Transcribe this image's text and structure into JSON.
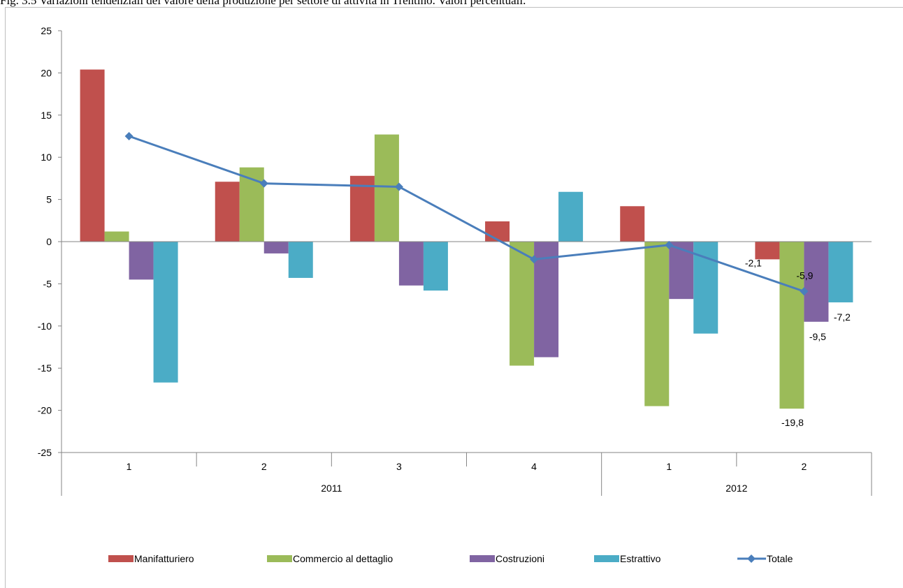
{
  "title": "Fig. 3.5 Variazioni tendenziali del valore della produzione per settore di attività in Trentino. Valori percentuali.",
  "chart_data": {
    "type": "bar",
    "ylim": [
      -25,
      25
    ],
    "yticks": [
      25,
      20,
      15,
      10,
      5,
      0,
      -5,
      -10,
      -15,
      -20,
      -25
    ],
    "ytick_labels": [
      "25",
      "20",
      "15",
      "10",
      "5",
      "0",
      "-5",
      "-10",
      "-15",
      "-20",
      "-25"
    ],
    "grid": false,
    "legend_position": "bottom",
    "categories": [
      "1",
      "2",
      "3",
      "4",
      "1",
      "2"
    ],
    "groups": [
      {
        "label": "2011",
        "categories": [
          0,
          1,
          2,
          3
        ]
      },
      {
        "label": "2012",
        "categories": [
          4,
          5
        ]
      }
    ],
    "series": [
      {
        "name": "Manifatturiero",
        "type": "bar",
        "color": "#c0504d",
        "values": [
          20.4,
          7.1,
          7.8,
          2.4,
          4.2,
          -2.1
        ]
      },
      {
        "name": "Commercio al dettaglio",
        "type": "bar",
        "color": "#9bbb59",
        "values": [
          1.2,
          8.8,
          12.7,
          -14.7,
          -19.5,
          -19.8
        ]
      },
      {
        "name": "Costruzioni",
        "type": "bar",
        "color": "#8064a2",
        "values": [
          -4.5,
          -1.4,
          -5.2,
          -13.7,
          -6.8,
          -9.5
        ]
      },
      {
        "name": "Estrattivo",
        "type": "bar",
        "color": "#4bacc6",
        "values": [
          -16.7,
          -4.3,
          -5.8,
          5.9,
          -10.9,
          -7.2
        ]
      },
      {
        "name": "Totale",
        "type": "line",
        "color": "#4a7ebb",
        "values": [
          12.5,
          6.9,
          6.5,
          -2.1,
          -0.4,
          -5.9
        ]
      }
    ],
    "data_labels": [
      {
        "series": 0,
        "category": 5,
        "text": "-2,1"
      },
      {
        "series": 1,
        "category": 5,
        "text": "-19,8"
      },
      {
        "series": 2,
        "category": 5,
        "text": "-9,5"
      },
      {
        "series": 3,
        "category": 5,
        "text": "-7,2"
      },
      {
        "series": 4,
        "category": 5,
        "text": "-5,9"
      }
    ]
  }
}
